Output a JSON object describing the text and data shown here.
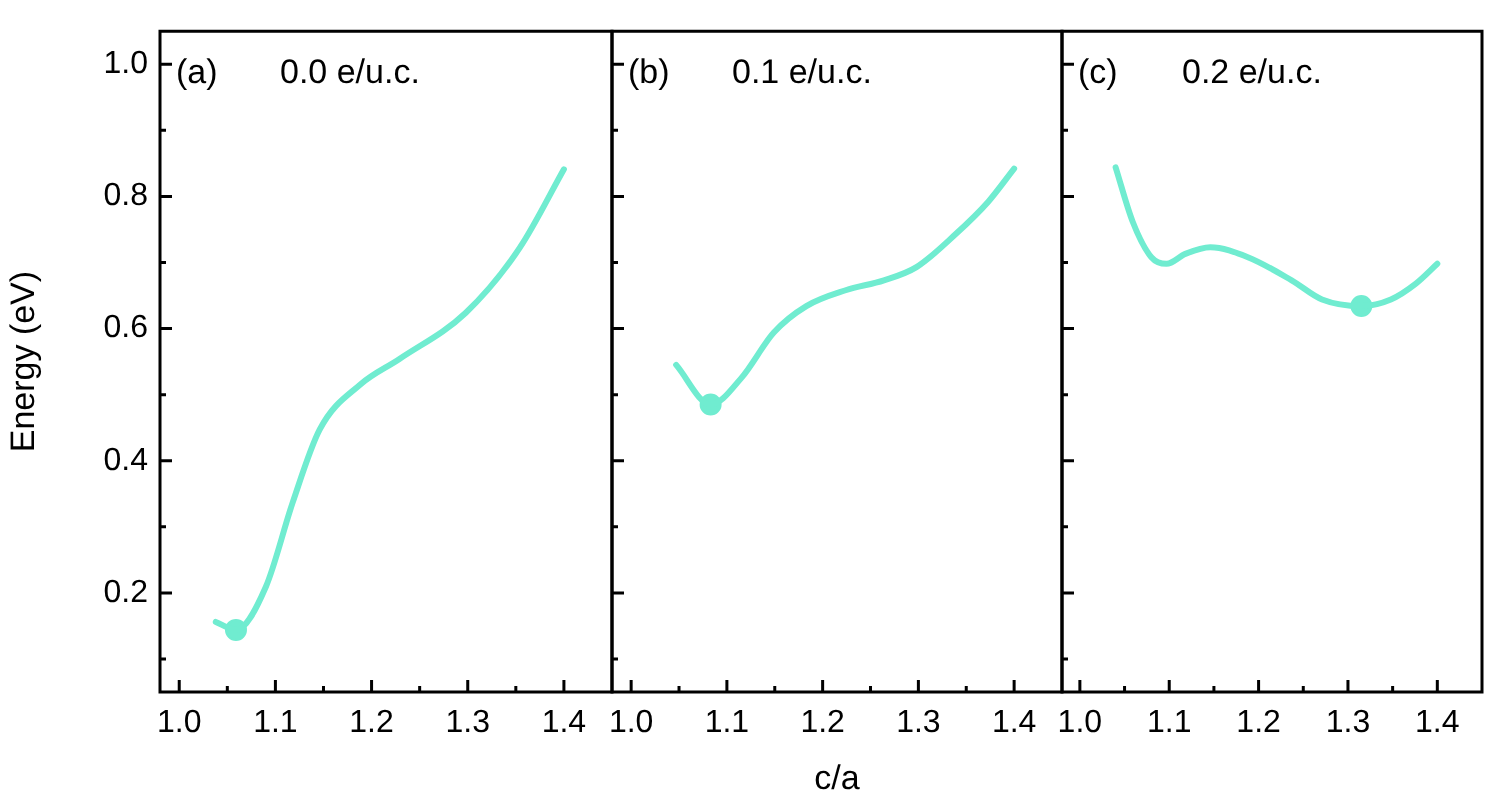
{
  "chart_data": [
    {
      "type": "line",
      "ylabel": "Energy (eV)",
      "annotations": [
        "(a)",
        "0.0 e/u.c."
      ],
      "xlim": [
        0.98,
        1.45
      ],
      "ylim": [
        0.05,
        1.05
      ],
      "xticks": [
        {
          "value": 1,
          "label": "1.0"
        },
        {
          "value": 1.05,
          "label": null
        },
        1.1,
        {
          "value": 1.15,
          "label": null
        },
        1.2,
        {
          "value": 1.25,
          "label": null
        },
        1.3,
        {
          "value": 1.35,
          "label": null
        },
        1.4
      ],
      "yticks": [
        {
          "value": 0.1,
          "label": null
        },
        0.2,
        {
          "value": 0.3,
          "label": null
        },
        0.4,
        {
          "value": 0.5,
          "label": null
        },
        0.6,
        {
          "value": 0.7,
          "label": null
        },
        0.8,
        {
          "value": 0.9,
          "label": null
        },
        {
          "value": 1,
          "label": "1.0"
        }
      ],
      "series": [
        {
          "type": "line",
          "color": "#70ecd0",
          "marker": "none",
          "x": [
            1.038,
            1.059,
            1.09,
            1.118,
            1.146,
            1.188,
            1.229,
            1.298,
            1.354,
            1.4
          ],
          "values": [
            0.156,
            0.144,
            0.209,
            0.337,
            0.447,
            0.515,
            0.554,
            0.624,
            0.722,
            0.841
          ]
        },
        {
          "type": "scatter",
          "color": "#70ecd0",
          "marker": "circle",
          "x": [
            1.059
          ],
          "values": [
            0.144
          ]
        }
      ]
    },
    {
      "type": "line",
      "xlabel": "c/a",
      "tick_labels": "x",
      "annotations": [
        "(b)",
        "0.1 e/u.c."
      ],
      "xlim": [
        0.98,
        1.45
      ],
      "ylim": [
        0.05,
        1.05
      ],
      "xticks": [
        {
          "value": 1,
          "label": "1.0"
        },
        {
          "value": 1.05,
          "label": null
        },
        1.1,
        {
          "value": 1.15,
          "label": null
        },
        1.2,
        {
          "value": 1.25,
          "label": null
        },
        1.3,
        {
          "value": 1.35,
          "label": null
        },
        1.4
      ],
      "yticks": [
        {
          "value": 0.1,
          "label": null
        },
        0.2,
        {
          "value": 0.3,
          "label": null
        },
        0.4,
        {
          "value": 0.5,
          "label": null
        },
        0.6,
        {
          "value": 0.7,
          "label": null
        },
        0.8,
        {
          "value": 0.9,
          "label": null
        },
        1.0
      ],
      "series": [
        {
          "type": "line",
          "color": "#70ecd0",
          "marker": "none",
          "x": [
            1.047,
            1.083,
            1.115,
            1.149,
            1.183,
            1.224,
            1.264,
            1.298,
            1.339,
            1.373,
            1.4
          ],
          "values": [
            0.545,
            0.485,
            0.525,
            0.594,
            0.634,
            0.658,
            0.673,
            0.693,
            0.743,
            0.792,
            0.842
          ]
        },
        {
          "type": "scatter",
          "color": "#70ecd0",
          "marker": "circle",
          "x": [
            1.083
          ],
          "values": [
            0.485
          ]
        }
      ]
    },
    {
      "type": "line",
      "tick_labels": "x",
      "annotations": [
        "(c)",
        "0.2 e/u.c."
      ],
      "xlim": [
        0.98,
        1.45
      ],
      "ylim": [
        0.05,
        1.05
      ],
      "xticks": [
        {
          "value": 1,
          "label": "1.0"
        },
        {
          "value": 1.05,
          "label": null
        },
        1.1,
        {
          "value": 1.15,
          "label": null
        },
        1.2,
        {
          "value": 1.25,
          "label": null
        },
        1.3,
        {
          "value": 1.35,
          "label": null
        },
        1.4
      ],
      "yticks": [
        {
          "value": 0.1,
          "label": null
        },
        0.2,
        {
          "value": 0.3,
          "label": null
        },
        0.4,
        {
          "value": 0.5,
          "label": null
        },
        0.6,
        {
          "value": 0.7,
          "label": null
        },
        0.8,
        {
          "value": 0.9,
          "label": null
        },
        1.0
      ],
      "series": [
        {
          "type": "line",
          "color": "#70ecd0",
          "marker": "none",
          "x": [
            1.04,
            1.059,
            1.08,
            1.097,
            1.118,
            1.146,
            1.188,
            1.237,
            1.271,
            1.315,
            1.348,
            1.376,
            1.4
          ],
          "values": [
            0.844,
            0.762,
            0.708,
            0.698,
            0.713,
            0.723,
            0.708,
            0.673,
            0.644,
            0.634,
            0.644,
            0.668,
            0.698
          ]
        },
        {
          "type": "scatter",
          "color": "#70ecd0",
          "marker": "circle",
          "x": [
            1.315
          ],
          "values": [
            0.634
          ]
        }
      ]
    }
  ]
}
